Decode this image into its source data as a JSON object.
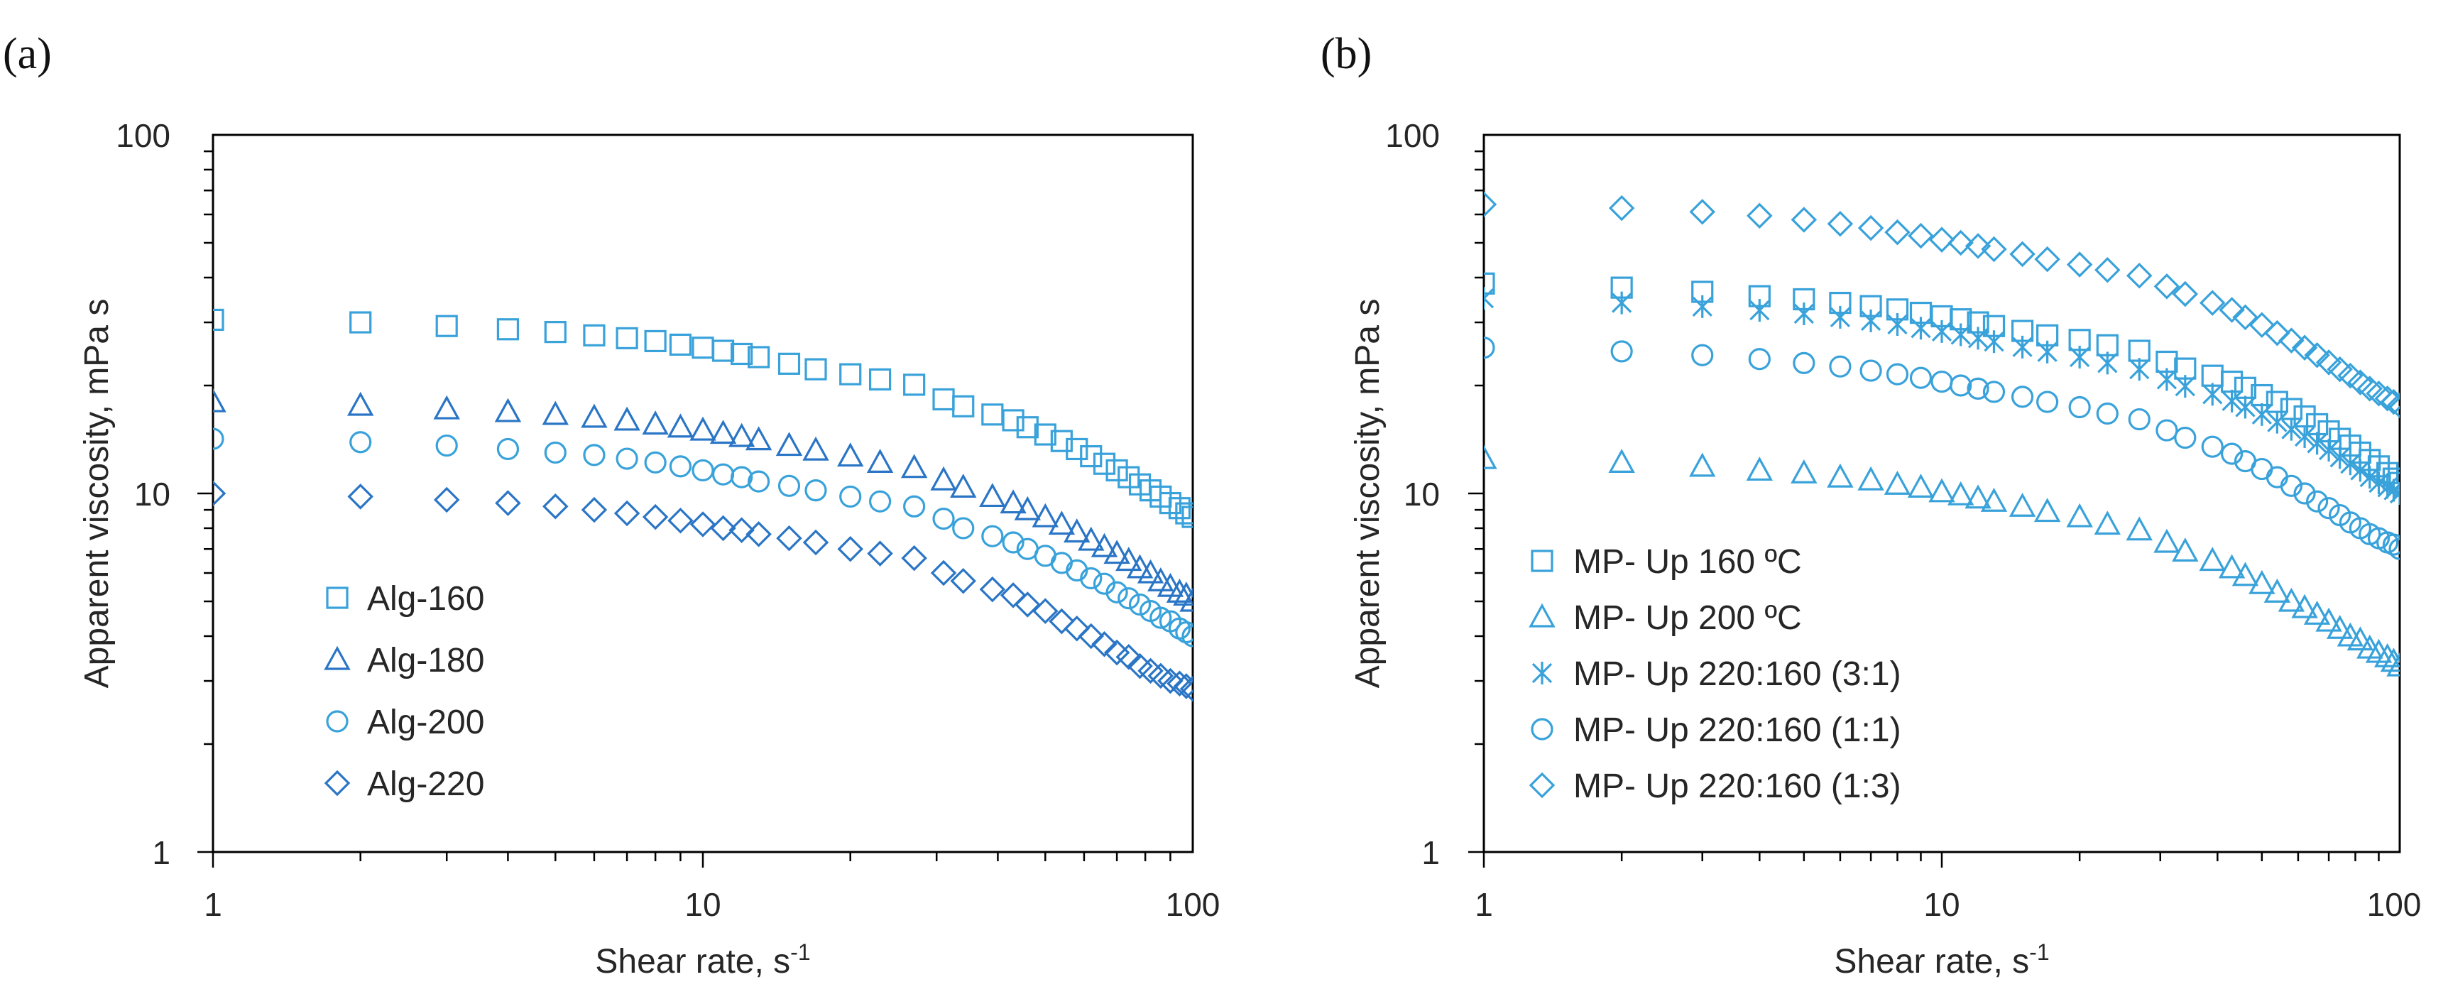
{
  "colors": {
    "light": "#39a2da",
    "dark": "#2a75c5",
    "axis": "#000000",
    "minor": "#8c8c8c"
  },
  "chart_data": [
    {
      "panel": "(a)",
      "type": "scatter",
      "x_scale": "log",
      "y_scale": "log",
      "xlabel": "Shear rate, s",
      "xlabel_sup": "-1",
      "ylabel": "Apparent viscosity, mPa s",
      "xlim": [
        1,
        100
      ],
      "ylim": [
        1,
        100
      ],
      "x_ticks": [
        "1",
        "10",
        "100"
      ],
      "y_ticks": [
        "1",
        "10",
        "100"
      ],
      "legend_position": "lower-left",
      "x": [
        1,
        2,
        3,
        4,
        5,
        6,
        7,
        8,
        9,
        10,
        11,
        12,
        13,
        15,
        17,
        20,
        23,
        27,
        31,
        34,
        39,
        43,
        46,
        50,
        54,
        58,
        62,
        66,
        70,
        74,
        78,
        82,
        86,
        90,
        94,
        97,
        100
      ],
      "series": [
        {
          "name": "Alg-160",
          "marker": "square",
          "color": "light",
          "values": [
            30.5,
            30.0,
            29.3,
            28.7,
            28.2,
            27.6,
            27.1,
            26.6,
            26.0,
            25.5,
            25.0,
            24.5,
            24.0,
            23.0,
            22.2,
            21.5,
            20.8,
            20.1,
            18.3,
            17.5,
            16.6,
            16.0,
            15.3,
            14.6,
            14.0,
            13.3,
            12.7,
            12.1,
            11.6,
            11.1,
            10.6,
            10.2,
            9.8,
            9.4,
            9.1,
            8.8,
            8.6
          ]
        },
        {
          "name": "Alg-180",
          "marker": "triangle",
          "color": "dark",
          "values": [
            18.0,
            17.6,
            17.2,
            16.9,
            16.6,
            16.3,
            16.0,
            15.6,
            15.3,
            15.0,
            14.7,
            14.4,
            14.1,
            13.6,
            13.2,
            12.7,
            12.2,
            11.8,
            10.9,
            10.4,
            9.8,
            9.4,
            9.0,
            8.6,
            8.2,
            7.8,
            7.4,
            7.1,
            6.8,
            6.5,
            6.2,
            6.0,
            5.7,
            5.5,
            5.3,
            5.2,
            5.0
          ]
        },
        {
          "name": "Alg-200",
          "marker": "circle",
          "color": "light",
          "values": [
            14.2,
            13.9,
            13.6,
            13.3,
            13.0,
            12.8,
            12.5,
            12.2,
            11.9,
            11.6,
            11.3,
            11.1,
            10.8,
            10.5,
            10.2,
            9.8,
            9.5,
            9.2,
            8.5,
            8.0,
            7.6,
            7.3,
            7.0,
            6.7,
            6.4,
            6.1,
            5.8,
            5.6,
            5.3,
            5.1,
            4.9,
            4.7,
            4.5,
            4.4,
            4.2,
            4.1,
            4.0
          ]
        },
        {
          "name": "Alg-220",
          "marker": "diamond",
          "color": "dark",
          "values": [
            10.0,
            9.8,
            9.6,
            9.4,
            9.2,
            9.0,
            8.8,
            8.6,
            8.4,
            8.2,
            8.0,
            7.9,
            7.7,
            7.5,
            7.3,
            7.0,
            6.8,
            6.6,
            6.0,
            5.7,
            5.4,
            5.2,
            4.9,
            4.7,
            4.4,
            4.2,
            4.0,
            3.8,
            3.6,
            3.5,
            3.3,
            3.2,
            3.1,
            3.0,
            2.95,
            2.9,
            2.85
          ]
        }
      ]
    },
    {
      "panel": "(b)",
      "type": "scatter",
      "x_scale": "log",
      "y_scale": "log",
      "xlabel": "Shear rate, s",
      "xlabel_sup": "-1",
      "ylabel": "Apparent viscosity, mPa s",
      "xlim": [
        1,
        100
      ],
      "ylim": [
        1,
        100
      ],
      "x_ticks": [
        "1",
        "10",
        "100"
      ],
      "y_ticks": [
        "1",
        "10",
        "100"
      ],
      "legend_position": "lower-left",
      "x": [
        1,
        2,
        3,
        4,
        5,
        6,
        7,
        8,
        9,
        10,
        11,
        12,
        13,
        15,
        17,
        20,
        23,
        27,
        31,
        34,
        39,
        43,
        46,
        50,
        54,
        58,
        62,
        66,
        70,
        74,
        78,
        82,
        86,
        90,
        94,
        97,
        100
      ],
      "series": [
        {
          "name": "MP- Up 160 ºC",
          "marker": "square",
          "color": "light",
          "values": [
            38.5,
            37.5,
            36.5,
            35.5,
            34.8,
            34.0,
            33.3,
            32.6,
            31.9,
            31.2,
            30.6,
            30.0,
            29.3,
            28.4,
            27.6,
            26.8,
            25.9,
            25.0,
            23.3,
            22.3,
            21.3,
            20.5,
            19.7,
            18.8,
            18.0,
            17.2,
            16.4,
            15.6,
            14.9,
            14.2,
            13.6,
            13.0,
            12.4,
            11.9,
            11.4,
            11.0,
            10.7
          ]
        },
        {
          "name": "MP- Up 200 ºC",
          "marker": "triangle",
          "color": "light",
          "values": [
            12.5,
            12.2,
            11.9,
            11.6,
            11.4,
            11.1,
            10.9,
            10.6,
            10.4,
            10.1,
            9.9,
            9.7,
            9.5,
            9.2,
            8.9,
            8.6,
            8.2,
            7.9,
            7.3,
            6.9,
            6.5,
            6.2,
            5.9,
            5.6,
            5.3,
            5.0,
            4.8,
            4.6,
            4.4,
            4.2,
            4.0,
            3.9,
            3.7,
            3.6,
            3.5,
            3.4,
            3.3
          ]
        },
        {
          "name": "MP- Up 220:160 (3:1)",
          "marker": "asterisk",
          "color": "light",
          "values": [
            35.0,
            34.0,
            33.2,
            32.4,
            31.7,
            31.0,
            30.3,
            29.6,
            28.9,
            28.3,
            27.7,
            27.1,
            26.5,
            25.6,
            24.8,
            24.0,
            23.1,
            22.2,
            20.8,
            19.9,
            18.9,
            18.1,
            17.4,
            16.6,
            15.8,
            15.1,
            14.4,
            13.8,
            13.2,
            12.6,
            12.1,
            11.6,
            11.1,
            10.7,
            10.4,
            10.2,
            10.0
          ]
        },
        {
          "name": "MP- Up 220:160 (1:1)",
          "marker": "circle",
          "color": "light",
          "values": [
            25.5,
            24.9,
            24.3,
            23.7,
            23.1,
            22.6,
            22.0,
            21.5,
            21.0,
            20.5,
            20.0,
            19.6,
            19.2,
            18.6,
            18.0,
            17.4,
            16.7,
            16.1,
            15.0,
            14.3,
            13.5,
            12.9,
            12.3,
            11.7,
            11.1,
            10.5,
            10.0,
            9.5,
            9.1,
            8.7,
            8.3,
            8.0,
            7.7,
            7.5,
            7.3,
            7.2,
            7.0
          ]
        },
        {
          "name": "MP- Up 220:160 (1:3)",
          "marker": "diamond",
          "color": "light",
          "values": [
            64.0,
            62.5,
            61.0,
            59.5,
            58.0,
            56.5,
            55.0,
            53.5,
            52.3,
            51.0,
            50.0,
            49.0,
            48.0,
            46.5,
            45.0,
            43.5,
            42.0,
            40.5,
            37.8,
            36.0,
            34.0,
            32.5,
            31.0,
            29.5,
            28.0,
            26.7,
            25.5,
            24.3,
            23.2,
            22.2,
            21.3,
            20.4,
            19.6,
            19.0,
            18.4,
            18.0,
            17.6
          ]
        }
      ]
    }
  ]
}
